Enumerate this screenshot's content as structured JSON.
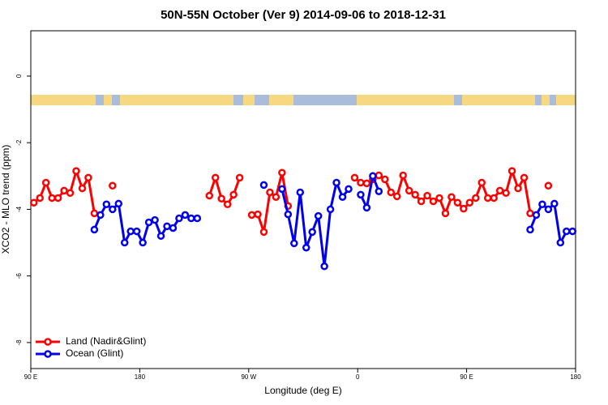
{
  "chart_data": {
    "type": "line",
    "title": "50N-55N October (Ver 9)   2014-09-06 to 2018-12-31",
    "x_label": "Longitude (deg E)",
    "y_label": "XCO2 - MLO trend (ppm)",
    "x": [
      92.5,
      97.5,
      102.5,
      107.5,
      112.5,
      117.5,
      122.5,
      127.5,
      132.5,
      137.5,
      142.5,
      147.5,
      152.5,
      157.5,
      162.5,
      167.5,
      172.5,
      177.5,
      182.5,
      187.5,
      192.5,
      197.5,
      202.5,
      207.5,
      212.5,
      217.5,
      222.5,
      227.5,
      232.5,
      237.5,
      242.5,
      247.5,
      252.5,
      257.5,
      262.5,
      267.5,
      272.5,
      277.5,
      282.5,
      287.5,
      292.5,
      297.5,
      302.5,
      307.5,
      312.5,
      317.5,
      322.5,
      327.5,
      332.5,
      337.5,
      342.5,
      347.5,
      352.5,
      357.5,
      362.5,
      367.5,
      372.5,
      377.5,
      382.5,
      387.5,
      392.5,
      397.5,
      402.5,
      407.5,
      412.5,
      417.5,
      422.5,
      427.5,
      432.5,
      437.5,
      442.5,
      447.5,
      452.5,
      457.5,
      462.5,
      467.5,
      472.5,
      477.5,
      482.5,
      487.5,
      492.5,
      497.5,
      502.5,
      507.5,
      512.5,
      517.5,
      522.5,
      527.5,
      532.5,
      537.5
    ],
    "series": [
      {
        "name": "Land (Nadir&Glint)",
        "color": "#ff0000",
        "values": [
          -3.8,
          -3.66,
          -3.2,
          -3.66,
          -3.66,
          -3.44,
          -3.51,
          -2.85,
          -3.37,
          -3.05,
          -4.12,
          null,
          null,
          -3.29,
          null,
          null,
          null,
          null,
          null,
          null,
          null,
          null,
          null,
          null,
          null,
          null,
          null,
          null,
          null,
          -3.59,
          -3.05,
          -3.68,
          -3.85,
          -3.56,
          -3.05,
          null,
          -4.17,
          -4.15,
          -4.68,
          -3.49,
          -3.63,
          -2.9,
          -3.9,
          null,
          null,
          null,
          null,
          null,
          null,
          null,
          null,
          null,
          null,
          -3.05,
          -3.2,
          -3.22,
          -3.1,
          -2.98,
          -3.1,
          -3.49,
          -3.61,
          -2.98,
          -3.44,
          -3.56,
          -3.76,
          -3.59,
          -3.76,
          -3.66,
          -4.12,
          -3.63,
          -3.8,
          -3.98,
          -3.8,
          -3.66,
          -3.2,
          -3.66,
          -3.66,
          -3.44,
          -3.51,
          -2.85,
          -3.37,
          -3.05,
          -4.12,
          null,
          null,
          -3.29,
          null,
          null,
          null,
          null
        ]
      },
      {
        "name": "Ocean (Glint)",
        "color": "#0000ee",
        "values": [
          null,
          null,
          null,
          null,
          null,
          null,
          null,
          null,
          null,
          null,
          -4.61,
          -4.17,
          -3.85,
          -4.0,
          -3.83,
          -5.0,
          -4.66,
          -4.66,
          -5.0,
          -4.39,
          -4.32,
          -4.8,
          -4.51,
          -4.56,
          -4.27,
          -4.17,
          -4.27,
          -4.27,
          null,
          null,
          null,
          null,
          null,
          null,
          null,
          null,
          null,
          null,
          -3.27,
          null,
          null,
          -3.39,
          -4.15,
          -5.02,
          -3.49,
          -5.15,
          -4.68,
          -4.2,
          -5.71,
          -4.0,
          -3.2,
          -3.63,
          -3.39,
          null,
          -3.56,
          -3.95,
          -3.0,
          -3.46,
          null,
          null,
          null,
          null,
          null,
          null,
          null,
          null,
          null,
          null,
          null,
          null,
          null,
          null,
          null,
          null,
          null,
          null,
          null,
          null,
          null,
          null,
          null,
          null,
          -4.61,
          -4.17,
          -3.85,
          -4.0,
          -3.83,
          -5.0,
          -4.66,
          -4.66
        ]
      }
    ],
    "xlim": [
      90,
      540
    ],
    "xticks": [
      {
        "value": 90,
        "label": "90 E"
      },
      180,
      {
        "value": 270,
        "label": "90 W"
      },
      {
        "value": 360,
        "label": "0"
      },
      {
        "value": 450,
        "label": "90 E"
      },
      {
        "value": 540,
        "label": "180"
      }
    ],
    "ylim": [
      -8.78,
      1.36
    ],
    "yticks": [
      0,
      -2,
      -4,
      -6,
      -8
    ],
    "legend": "bottom-left"
  }
}
